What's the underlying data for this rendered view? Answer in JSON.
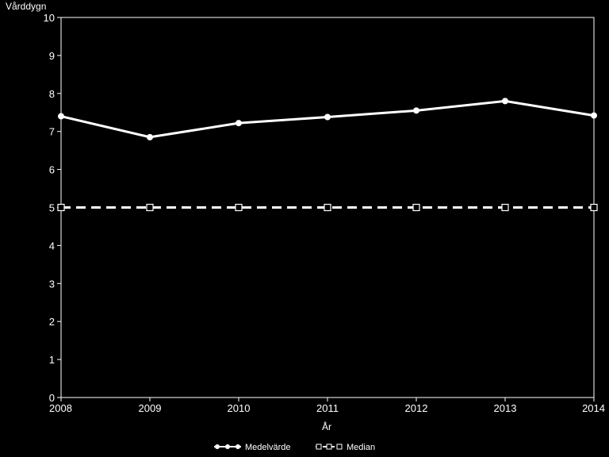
{
  "chart_data": {
    "type": "line",
    "title": "",
    "ylabel": "Vårddygn",
    "xlabel": "År",
    "x": [
      2008,
      2009,
      2010,
      2011,
      2012,
      2013,
      2014
    ],
    "xlim": [
      2008,
      2014
    ],
    "ylim": [
      0,
      10
    ],
    "yticks": [
      0,
      1,
      2,
      3,
      4,
      5,
      6,
      7,
      8,
      9,
      10
    ],
    "grid": false,
    "legend_position": "bottom",
    "series": [
      {
        "name": "Medelvärde",
        "values": [
          7.4,
          6.85,
          7.22,
          7.38,
          7.55,
          7.8,
          7.42
        ],
        "style": "solid",
        "marker": "filled-circle",
        "color": "#ffffff"
      },
      {
        "name": "Median",
        "values": [
          5,
          5,
          5,
          5,
          5,
          5,
          5
        ],
        "style": "dashed",
        "marker": "open-square",
        "color": "#ffffff"
      }
    ]
  }
}
